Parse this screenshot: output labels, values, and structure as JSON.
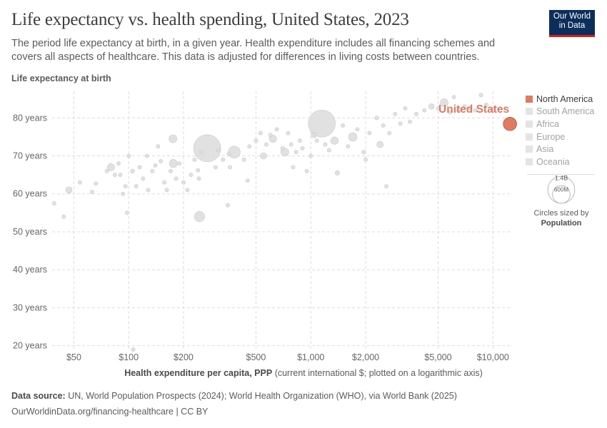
{
  "title": "Life expectancy vs. health spending, United States, 2023",
  "subtitle": "The period life expectancy at birth, in a given year. Health expenditure includes all financing schemes and covers all aspects of healthcare. This data is adjusted for differences in living costs between countries.",
  "logo": {
    "line1": "Our World",
    "line2": "in Data"
  },
  "colors": {
    "highlight": "#e07a61",
    "muted_point": "#dcdcdc",
    "grid": "#dddddd",
    "logo_bg": "#0b2e5c",
    "logo_accent": "#ce261e"
  },
  "legend": {
    "items": [
      {
        "label": "North America",
        "active": true
      },
      {
        "label": "South America",
        "active": false
      },
      {
        "label": "Africa",
        "active": false
      },
      {
        "label": "Europe",
        "active": false
      },
      {
        "label": "Asia",
        "active": false
      },
      {
        "label": "Oceania",
        "active": false
      }
    ],
    "size_key": {
      "large": "1.4B",
      "small": "600M",
      "caption_line1": "Circles sized by",
      "caption_line2": "Population"
    }
  },
  "footer": {
    "source_label": "Data source:",
    "source_text": "UN, World Population Prospects (2024); World Health Organization (WHO), via World Bank (2025)",
    "url_line": "OurWorldinData.org/financing-healthcare | CC BY"
  },
  "chart_data": {
    "type": "scatter",
    "title": "Life expectancy vs. health spending, United States, 2023",
    "xlabel_bold": "Health expenditure per capita, PPP",
    "xlabel_rest": "(current international $; plotted on a logarithmic axis)",
    "ylabel": "Life expectancy at birth",
    "x_scale": "log",
    "xlim": [
      38,
      12500
    ],
    "ylim": [
      19,
      87
    ],
    "x_ticks": [
      {
        "value": 50,
        "label": "$50"
      },
      {
        "value": 100,
        "label": "$100"
      },
      {
        "value": 200,
        "label": "$200"
      },
      {
        "value": 500,
        "label": "$500"
      },
      {
        "value": 1000,
        "label": "$1,000"
      },
      {
        "value": 2000,
        "label": "$2,000"
      },
      {
        "value": 5000,
        "label": "$5,000"
      },
      {
        "value": 10000,
        "label": "$10,000"
      }
    ],
    "y_ticks": [
      {
        "value": 20,
        "label": "20 years"
      },
      {
        "value": 30,
        "label": "30 years"
      },
      {
        "value": 40,
        "label": "40 years"
      },
      {
        "value": 50,
        "label": "50 years"
      },
      {
        "value": 60,
        "label": "60 years"
      },
      {
        "value": 70,
        "label": "70 years"
      },
      {
        "value": 80,
        "label": "80 years"
      }
    ],
    "grid": true,
    "highlight": {
      "name": "United States",
      "x": 12400,
      "y": 78.4,
      "population": 343
    },
    "points": [
      {
        "x": 39,
        "y": 57.5,
        "population": 20
      },
      {
        "x": 44,
        "y": 54,
        "population": 10
      },
      {
        "x": 47,
        "y": 61,
        "population": 80
      },
      {
        "x": 54,
        "y": 63,
        "population": 8
      },
      {
        "x": 63,
        "y": 60.5,
        "population": 8
      },
      {
        "x": 66,
        "y": 62.7,
        "population": 10
      },
      {
        "x": 76,
        "y": 66,
        "population": 8
      },
      {
        "x": 80,
        "y": 67,
        "population": 100
      },
      {
        "x": 84,
        "y": 65,
        "population": 15
      },
      {
        "x": 88,
        "y": 68,
        "population": 10
      },
      {
        "x": 90,
        "y": 65,
        "population": 10
      },
      {
        "x": 93,
        "y": 60,
        "population": 12
      },
      {
        "x": 96,
        "y": 62,
        "population": 10
      },
      {
        "x": 98,
        "y": 55,
        "population": 12
      },
      {
        "x": 100,
        "y": 70,
        "population": 8
      },
      {
        "x": 105,
        "y": 66,
        "population": 30
      },
      {
        "x": 110,
        "y": 62,
        "population": 20
      },
      {
        "x": 115,
        "y": 67,
        "population": 10
      },
      {
        "x": 120,
        "y": 64,
        "population": 15
      },
      {
        "x": 126,
        "y": 70,
        "population": 8
      },
      {
        "x": 128,
        "y": 61,
        "population": 10
      },
      {
        "x": 135,
        "y": 66,
        "population": 8
      },
      {
        "x": 140,
        "y": 67.5,
        "population": 8
      },
      {
        "x": 145,
        "y": 72.5,
        "population": 15
      },
      {
        "x": 150,
        "y": 68.6,
        "population": 12
      },
      {
        "x": 157,
        "y": 63,
        "population": 8
      },
      {
        "x": 162,
        "y": 61,
        "population": 10
      },
      {
        "x": 170,
        "y": 66,
        "population": 8
      },
      {
        "x": 175,
        "y": 74.5,
        "population": 120
      },
      {
        "x": 176,
        "y": 68,
        "population": 130
      },
      {
        "x": 182,
        "y": 64,
        "population": 20
      },
      {
        "x": 190,
        "y": 68,
        "population": 10
      },
      {
        "x": 200,
        "y": 63,
        "population": 10
      },
      {
        "x": 210,
        "y": 61,
        "population": 8
      },
      {
        "x": 220,
        "y": 65,
        "population": 10
      },
      {
        "x": 230,
        "y": 69,
        "population": 8
      },
      {
        "x": 240,
        "y": 66.2,
        "population": 15
      },
      {
        "x": 243,
        "y": 64,
        "population": 25
      },
      {
        "x": 245,
        "y": 54,
        "population": 200
      },
      {
        "x": 250,
        "y": 71,
        "population": 20
      },
      {
        "x": 270,
        "y": 72,
        "population": 1420
      },
      {
        "x": 300,
        "y": 67,
        "population": 10
      },
      {
        "x": 310,
        "y": 71.5,
        "population": 15
      },
      {
        "x": 330,
        "y": 69,
        "population": 10
      },
      {
        "x": 350,
        "y": 57,
        "population": 8
      },
      {
        "x": 355,
        "y": 70.5,
        "population": 10
      },
      {
        "x": 360,
        "y": 67,
        "population": 12
      },
      {
        "x": 380,
        "y": 71,
        "population": 280
      },
      {
        "x": 430,
        "y": 69,
        "population": 8
      },
      {
        "x": 450,
        "y": 63.5,
        "population": 10
      },
      {
        "x": 460,
        "y": 72.5,
        "population": 8
      },
      {
        "x": 500,
        "y": 74,
        "population": 10
      },
      {
        "x": 530,
        "y": 76,
        "population": 8
      },
      {
        "x": 550,
        "y": 70,
        "population": 80
      },
      {
        "x": 570,
        "y": 73,
        "population": 15
      },
      {
        "x": 600,
        "y": 75.5,
        "population": 20
      },
      {
        "x": 620,
        "y": 74.5,
        "population": 100
      },
      {
        "x": 650,
        "y": 77,
        "population": 8
      },
      {
        "x": 700,
        "y": 72,
        "population": 12
      },
      {
        "x": 720,
        "y": 71,
        "population": 120
      },
      {
        "x": 750,
        "y": 76,
        "population": 8
      },
      {
        "x": 780,
        "y": 73,
        "population": 10
      },
      {
        "x": 800,
        "y": 67,
        "population": 10
      },
      {
        "x": 830,
        "y": 71,
        "population": 20
      },
      {
        "x": 870,
        "y": 74,
        "population": 10
      },
      {
        "x": 900,
        "y": 72,
        "population": 8
      },
      {
        "x": 950,
        "y": 66,
        "population": 10
      },
      {
        "x": 1000,
        "y": 70,
        "population": 15
      },
      {
        "x": 1040,
        "y": 75.5,
        "population": 60
      },
      {
        "x": 1080,
        "y": 74,
        "population": 15
      },
      {
        "x": 1150,
        "y": 78.5,
        "population": 1410
      },
      {
        "x": 1200,
        "y": 73,
        "population": 20
      },
      {
        "x": 1260,
        "y": 71.5,
        "population": 10
      },
      {
        "x": 1350,
        "y": 74,
        "population": 110
      },
      {
        "x": 1400,
        "y": 65.5,
        "population": 40
      },
      {
        "x": 1500,
        "y": 78,
        "population": 10
      },
      {
        "x": 1600,
        "y": 72.5,
        "population": 10
      },
      {
        "x": 1700,
        "y": 75,
        "population": 140
      },
      {
        "x": 1800,
        "y": 77,
        "population": 20
      },
      {
        "x": 1950,
        "y": 71,
        "population": 10
      },
      {
        "x": 2000,
        "y": 69,
        "population": 10
      },
      {
        "x": 2100,
        "y": 76,
        "population": 8
      },
      {
        "x": 2300,
        "y": 80,
        "population": 10
      },
      {
        "x": 2400,
        "y": 73,
        "population": 80
      },
      {
        "x": 2500,
        "y": 78,
        "population": 10
      },
      {
        "x": 2600,
        "y": 62,
        "population": 10
      },
      {
        "x": 2700,
        "y": 76,
        "population": 15
      },
      {
        "x": 2900,
        "y": 81,
        "population": 10
      },
      {
        "x": 3100,
        "y": 78.5,
        "population": 12
      },
      {
        "x": 3300,
        "y": 82.5,
        "population": 10
      },
      {
        "x": 3500,
        "y": 79,
        "population": 15
      },
      {
        "x": 3800,
        "y": 81,
        "population": 10
      },
      {
        "x": 4200,
        "y": 82,
        "population": 10
      },
      {
        "x": 4600,
        "y": 83,
        "population": 60
      },
      {
        "x": 5000,
        "y": 82.5,
        "population": 10
      },
      {
        "x": 5400,
        "y": 84,
        "population": 120
      },
      {
        "x": 5800,
        "y": 81.5,
        "population": 15
      },
      {
        "x": 6100,
        "y": 85.5,
        "population": 8
      },
      {
        "x": 6500,
        "y": 82,
        "population": 40
      },
      {
        "x": 7000,
        "y": 83,
        "population": 20
      },
      {
        "x": 7500,
        "y": 82.5,
        "population": 25
      },
      {
        "x": 8000,
        "y": 82,
        "population": 10
      },
      {
        "x": 8600,
        "y": 86,
        "population": 8
      },
      {
        "x": 9200,
        "y": 83.5,
        "population": 10
      },
      {
        "x": 10000,
        "y": 82,
        "population": 8
      },
      {
        "x": 106,
        "y": 19,
        "population": 8
      }
    ]
  }
}
